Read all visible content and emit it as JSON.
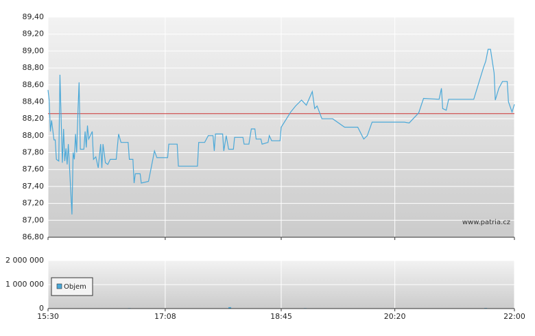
{
  "chart_data": [
    {
      "type": "line",
      "color": "#4aa8d8",
      "x": [
        "15:30",
        "15:31",
        "15:32",
        "15:33",
        "15:35",
        "15:36",
        "15:37",
        "15:39",
        "15:40",
        "15:42",
        "15:43",
        "15:44",
        "15:45",
        "15:46",
        "15:47",
        "15:48",
        "15:50",
        "15:51",
        "15:52",
        "15:53",
        "15:54",
        "15:55",
        "15:56",
        "15:57",
        "16:00",
        "16:01",
        "16:02",
        "16:03",
        "16:04",
        "16:07",
        "16:08",
        "16:10",
        "16:12",
        "16:14",
        "16:15",
        "16:16",
        "16:18",
        "16:20",
        "16:22",
        "16:27",
        "16:29",
        "16:31",
        "16:37",
        "16:38",
        "16:41",
        "16:42",
        "16:43",
        "16:47",
        "16:48",
        "16:54",
        "16:56",
        "16:59",
        "17:01",
        "17:10",
        "17:11",
        "17:18",
        "17:19",
        "17:35",
        "17:36",
        "17:41",
        "17:44",
        "17:48",
        "17:49",
        "17:50",
        "17:56",
        "17:57",
        "17:59",
        "18:01",
        "18:05",
        "18:06",
        "18:13",
        "18:14",
        "18:18",
        "18:20",
        "18:23",
        "18:24",
        "18:28",
        "18:29",
        "18:34",
        "18:35",
        "18:37",
        "18:44",
        "18:45",
        "18:53",
        "18:57",
        "19:02",
        "19:06",
        "19:11",
        "19:13",
        "19:15",
        "19:19",
        "19:28",
        "19:38",
        "19:49",
        "19:54",
        "19:57",
        "20:01",
        "20:28",
        "20:32",
        "20:40",
        "20:44",
        "20:57",
        "20:59",
        "21:00",
        "21:03",
        "21:05",
        "21:26",
        "21:34",
        "21:36",
        "21:38",
        "21:40",
        "21:43",
        "21:44",
        "21:47",
        "21:50",
        "21:54",
        "21:55",
        "21:58",
        "22:00"
      ],
      "values": [
        88.54,
        88.42,
        88.05,
        88.18,
        87.95,
        87.95,
        87.72,
        87.7,
        88.72,
        87.68,
        88.08,
        87.7,
        87.85,
        87.66,
        87.9,
        87.62,
        87.07,
        87.8,
        87.72,
        88.02,
        87.8,
        88.28,
        88.63,
        87.84,
        87.84,
        88.05,
        87.86,
        88.12,
        87.96,
        88.05,
        87.72,
        87.75,
        87.62,
        87.9,
        87.62,
        87.9,
        87.68,
        87.66,
        87.72,
        87.72,
        88.02,
        87.92,
        87.92,
        87.72,
        87.72,
        87.44,
        87.55,
        87.55,
        87.44,
        87.46,
        87.6,
        87.82,
        87.74,
        87.74,
        87.9,
        87.9,
        87.64,
        87.64,
        87.92,
        87.92,
        88.0,
        88.0,
        87.82,
        88.02,
        88.02,
        87.82,
        88.0,
        87.84,
        87.84,
        87.98,
        87.98,
        87.9,
        87.9,
        88.08,
        88.08,
        87.96,
        87.96,
        87.9,
        87.92,
        88.0,
        87.94,
        87.94,
        88.1,
        88.28,
        88.35,
        88.42,
        88.36,
        88.52,
        88.32,
        88.35,
        88.2,
        88.2,
        88.1,
        88.1,
        87.96,
        88.0,
        88.16,
        88.16,
        88.15,
        88.27,
        88.44,
        88.43,
        88.56,
        88.32,
        88.3,
        88.43,
        88.43,
        88.8,
        88.88,
        89.02,
        89.02,
        88.74,
        88.42,
        88.56,
        88.64,
        88.64,
        88.4,
        88.28,
        88.37
      ],
      "reference_line": 88.26,
      "reference_color": "#cc3333",
      "xlim": [
        "15:30",
        "22:00"
      ],
      "ylim": [
        86.8,
        89.4
      ],
      "yticks": [
        {
          "value": 86.8,
          "label": "86,80"
        },
        {
          "value": 87.0,
          "label": "87,00"
        },
        {
          "value": 87.2,
          "label": "87,20"
        },
        {
          "value": 87.4,
          "label": "87,40"
        },
        {
          "value": 87.6,
          "label": "87,60"
        },
        {
          "value": 87.8,
          "label": "87,80"
        },
        {
          "value": 88.0,
          "label": "88,00"
        },
        {
          "value": 88.2,
          "label": "88,20"
        },
        {
          "value": 88.4,
          "label": "88,40"
        },
        {
          "value": 88.6,
          "label": "88,60"
        },
        {
          "value": 88.8,
          "label": "88,80"
        },
        {
          "value": 89.0,
          "label": "89,00"
        },
        {
          "value": 89.2,
          "label": "89,20"
        },
        {
          "value": 89.4,
          "label": "89,40"
        }
      ],
      "xticks": [
        "15:30",
        "17:08",
        "18:45",
        "20:20",
        "22:00"
      ],
      "grid": true,
      "watermark": "www.patria.cz"
    },
    {
      "type": "bar",
      "series": [
        {
          "name": "Objem",
          "color": "#4aa8d8",
          "x": [
            "16:38",
            "18:02",
            "19:05",
            "20:20",
            "21:36"
          ],
          "values": [
            20000,
            60000,
            20000,
            15000,
            25000
          ]
        }
      ],
      "xlim": [
        "15:30",
        "22:00"
      ],
      "ylim": [
        0,
        2000000
      ],
      "yticks": [
        0,
        {
          "value": 1000000,
          "label": "1 000 000"
        },
        {
          "value": 2000000,
          "label": "2 000 000"
        }
      ],
      "xticks": [
        "15:30",
        "17:08",
        "18:45",
        "20:20",
        "22:00"
      ],
      "grid": true,
      "legend": "bottom-left"
    }
  ]
}
